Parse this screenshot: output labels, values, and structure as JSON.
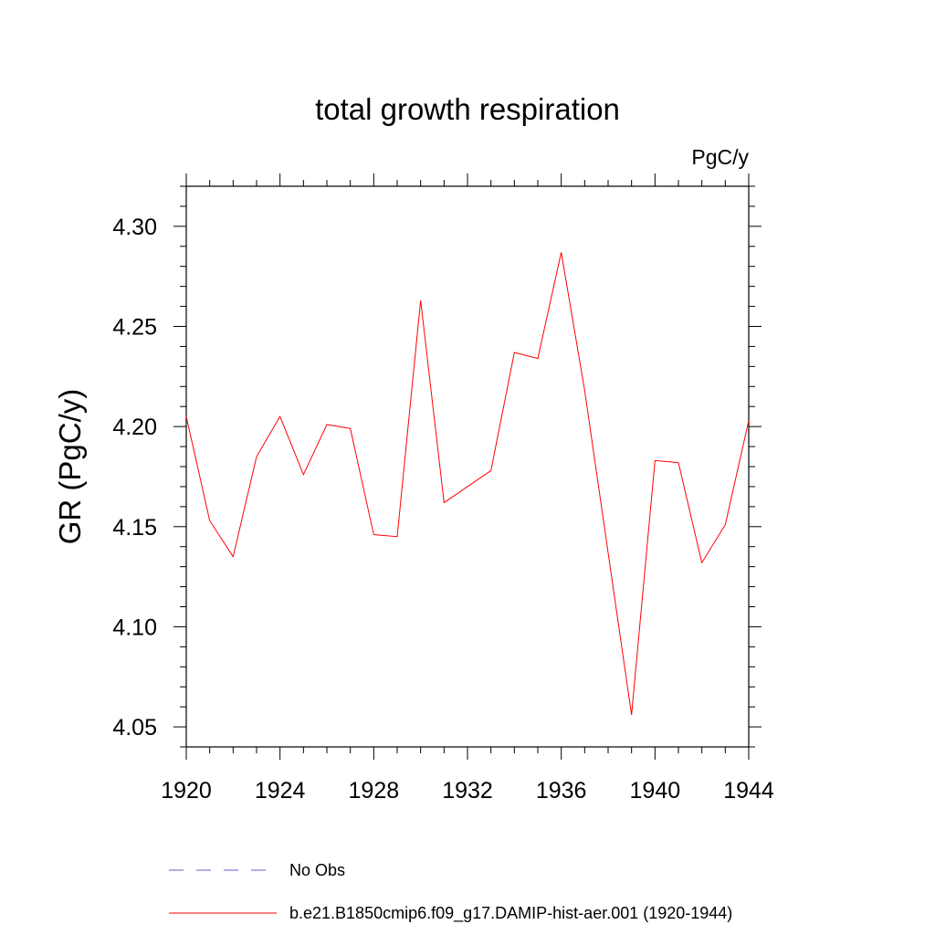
{
  "chart_data": {
    "type": "line",
    "title": "total growth respiration",
    "units_label": "PgC/y",
    "xlabel": "",
    "ylabel": "GR  (PgC/y)",
    "xlim": [
      1920,
      1944
    ],
    "ylim": [
      4.04,
      4.32
    ],
    "x_ticks": [
      1920,
      1924,
      1928,
      1932,
      1936,
      1940,
      1944
    ],
    "x_tick_labels": [
      "1920",
      "1924",
      "1928",
      "1932",
      "1936",
      "1940",
      "1944"
    ],
    "y_ticks": [
      4.05,
      4.1,
      4.15,
      4.2,
      4.25,
      4.3
    ],
    "y_tick_labels": [
      "4.05",
      "4.10",
      "4.15",
      "4.20",
      "4.25",
      "4.30"
    ],
    "grid": false,
    "legend_position": "bottom",
    "series": [
      {
        "name": "b.e21.B1850cmip6.f09_g17.DAMIP-hist-aer.001 (1920-1944)",
        "color": "#ff0000",
        "style": "solid",
        "x": [
          1920,
          1921,
          1922,
          1923,
          1924,
          1925,
          1926,
          1927,
          1928,
          1929,
          1930,
          1931,
          1932,
          1933,
          1934,
          1935,
          1936,
          1937,
          1938,
          1939,
          1940,
          1941,
          1942,
          1943,
          1944
        ],
        "values": [
          4.205,
          4.153,
          4.135,
          4.185,
          4.205,
          4.176,
          4.201,
          4.199,
          4.146,
          4.145,
          4.263,
          4.162,
          4.17,
          4.178,
          4.237,
          4.234,
          4.287,
          4.218,
          4.137,
          4.056,
          4.183,
          4.182,
          4.132,
          4.151,
          4.203
        ]
      }
    ],
    "legend": [
      {
        "label": "No Obs",
        "color": "#6a5acd",
        "style": "dashed"
      },
      {
        "label": "b.e21.B1850cmip6.f09_g17.DAMIP-hist-aer.001 (1920-1944)",
        "color": "#ff0000",
        "style": "solid"
      }
    ]
  }
}
